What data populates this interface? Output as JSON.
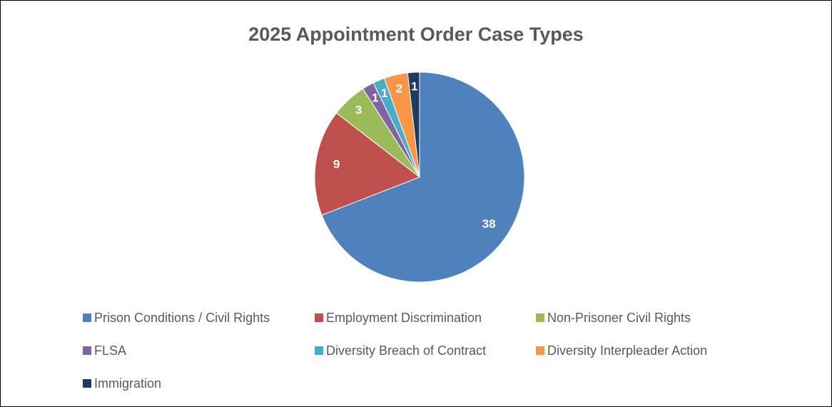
{
  "chart_data": {
    "type": "pie",
    "title": "2025 Appointment Order Case Types",
    "categories": [
      "Prison Conditions / Civil Rights",
      "Employment Discrimination",
      "Non-Prisoner Civil Rights",
      "FLSA",
      "Diversity Breach of Contract",
      "Diversity Interpleader Action",
      "Immigration"
    ],
    "values": [
      38,
      9,
      3,
      1,
      1,
      2,
      1
    ],
    "colors": [
      "#4f81bd",
      "#c0504d",
      "#9bbb59",
      "#8064a2",
      "#4bacc6",
      "#f79646",
      "#1f3b63"
    ],
    "legend": "bottom"
  }
}
